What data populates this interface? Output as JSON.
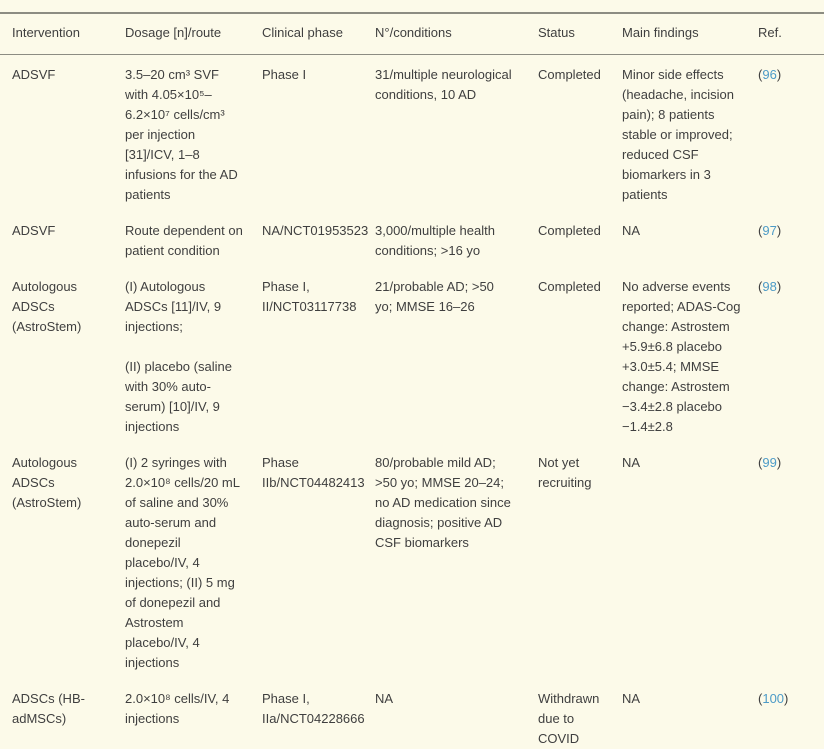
{
  "page": {
    "background_color": "#fcfae9",
    "text_color": "#3f3f3f",
    "rule_color": "#8c8c82",
    "link_color": "#4d9bc7"
  },
  "table": {
    "columns": [
      "Intervention",
      "Dosage [n]/route",
      "Clinical phase",
      "N°/conditions",
      "Status",
      "Main findings",
      "Ref."
    ],
    "ref_paren_open": "(",
    "ref_paren_close": ")",
    "rows": [
      {
        "intervention": "ADSVF",
        "dosage": [
          "3.5–20 cm³ SVF with 4.05×10⁵–6.2×10⁷ cells/cm³ per injection [31]/ICV, 1–8 infusions for the AD patients"
        ],
        "clinical_phase": "Phase I",
        "n_conditions": "31/multiple neurological conditions, 10 AD",
        "status": "Completed",
        "main_findings": "Minor side effects (headache, incision pain); 8 patients stable or improved; reduced CSF biomarkers in 3 patients",
        "ref": "96"
      },
      {
        "intervention": "ADSVF",
        "dosage": [
          "Route dependent on patient condition"
        ],
        "clinical_phase": "NA/NCT01953523",
        "n_conditions": "3,000/multiple health conditions; >16 yo",
        "status": "Completed",
        "main_findings": "NA",
        "ref": "97"
      },
      {
        "intervention": "Autologous ADSCs (AstroStem)",
        "dosage": [
          "(I) Autologous ADSCs [11]/IV, 9 injections;",
          "(II) placebo (saline with 30% auto-serum) [10]/IV, 9 injections"
        ],
        "clinical_phase": "Phase I, II/NCT03117738",
        "n_conditions": "21/probable AD; >50 yo; MMSE 16–26",
        "status": "Completed",
        "main_findings": "No adverse events reported; ADAS-Cog change: Astrostem +5.9±6.8 placebo +3.0±5.4; MMSE change: Astrostem −3.4±2.8 placebo −1.4±2.8",
        "ref": "98"
      },
      {
        "intervention": "Autologous ADSCs (AstroStem)",
        "dosage": [
          "(I) 2 syringes with 2.0×10⁸ cells/20 mL of saline and 30% auto-serum and donepezil placebo/IV, 4 injections; (II) 5 mg of donepezil and Astrostem placebo/IV, 4 injections"
        ],
        "clinical_phase": "Phase IIb/NCT04482413",
        "n_conditions": "80/probable mild AD; >50 yo; MMSE 20–24; no AD medication since diagnosis; positive AD CSF biomarkers",
        "status": "Not yet recruiting",
        "main_findings": "NA",
        "ref": "99"
      },
      {
        "intervention": "ADSCs (HB-adMSCs)",
        "dosage": [
          "2.0×10⁸ cells/IV, 4 injections"
        ],
        "clinical_phase": "Phase I, IIa/NCT04228666",
        "n_conditions": "NA",
        "status": "Withdrawn due to COVID",
        "main_findings": "NA",
        "ref": "100"
      }
    ]
  }
}
